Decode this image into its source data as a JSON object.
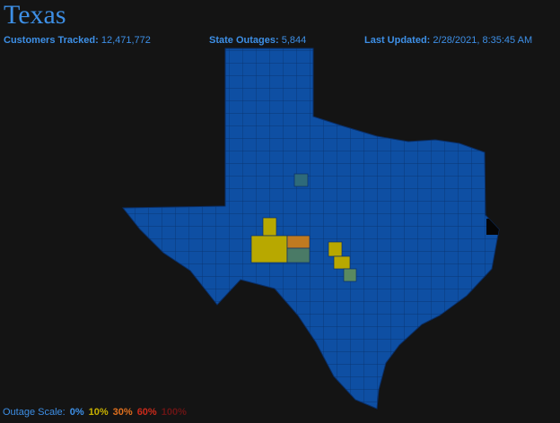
{
  "header": {
    "title": "Texas"
  },
  "stats": [
    {
      "label": "Customers Tracked:",
      "value": "12,471,772"
    },
    {
      "label": "State Outages:",
      "value": "5,844"
    },
    {
      "label": "Last Updated:",
      "value": "2/28/2021, 8:35:45 AM"
    }
  ],
  "legend": {
    "label": "Outage Scale:",
    "items": [
      {
        "label": "0%",
        "color": "#3d8fe6"
      },
      {
        "label": "10%",
        "color": "#c9b200"
      },
      {
        "label": "30%",
        "color": "#e0701e"
      },
      {
        "label": "60%",
        "color": "#cc2a1a"
      },
      {
        "label": "100%",
        "color": "#6a1414"
      }
    ]
  }
}
